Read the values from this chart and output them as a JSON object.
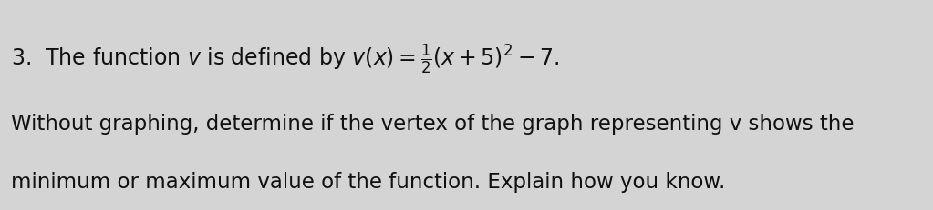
{
  "background_color": "#d4d4d4",
  "line1": "3.  The function v is defined by v(x) = $\\frac{1}{2}$(x + 5)² – 7.",
  "line2": "Without graphing, determine if the vertex of the graph representing v shows the",
  "line3": "minimum or maximum value of the function. Explain how you know.",
  "font_size_line1": 17,
  "font_size_line23": 16.5,
  "text_color": "#111111",
  "fig_width": 10.23,
  "fig_height": 2.31,
  "dpi": 100
}
